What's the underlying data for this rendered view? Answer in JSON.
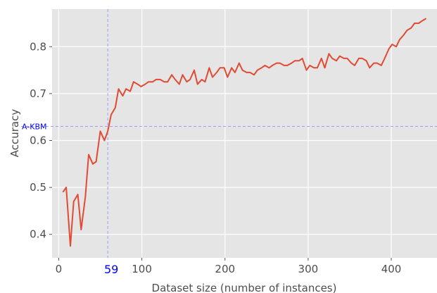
{
  "chart_data": {
    "type": "line",
    "xlabel": "Dataset size (number of instances)",
    "ylabel": "Accuracy",
    "xlim": [
      -8,
      455
    ],
    "ylim": [
      0.35,
      0.88
    ],
    "xticks": [
      0,
      100,
      200,
      300,
      400
    ],
    "yticks": [
      0.4,
      0.5,
      0.6,
      0.7,
      0.8
    ],
    "grid": true,
    "colors": {
      "background": "#e5e5e5",
      "line": "#e24a33",
      "reference": "#0000ff",
      "text": "#4d4d4d"
    },
    "reference_lines": {
      "vertical": {
        "x": 59,
        "label": "59"
      },
      "horizontal": {
        "y": 0.63,
        "label": "A-KBM"
      }
    },
    "series": [
      {
        "x": [
          5,
          9,
          14,
          18,
          23,
          27,
          32,
          36,
          41,
          45,
          50,
          55,
          59,
          63,
          68,
          72,
          77,
          81,
          86,
          90,
          95,
          99,
          104,
          108,
          113,
          117,
          122,
          127,
          131,
          136,
          140,
          145,
          149,
          154,
          158,
          163,
          167,
          172,
          176,
          181,
          185,
          190,
          194,
          199,
          203,
          208,
          212,
          217,
          221,
          226,
          230,
          235,
          239,
          244,
          248,
          253,
          257,
          262,
          266,
          271,
          275,
          280,
          284,
          289,
          293,
          298,
          302,
          307,
          311,
          316,
          320,
          325,
          329,
          334,
          338,
          343,
          347,
          352,
          356,
          361,
          365,
          370,
          374,
          379,
          383,
          388,
          392,
          397,
          401,
          406,
          410,
          415,
          419,
          424,
          428,
          433,
          437,
          442
        ],
        "y": [
          0.49,
          0.5,
          0.375,
          0.47,
          0.485,
          0.41,
          0.48,
          0.57,
          0.55,
          0.555,
          0.62,
          0.6,
          0.62,
          0.655,
          0.67,
          0.71,
          0.695,
          0.71,
          0.705,
          0.725,
          0.72,
          0.715,
          0.72,
          0.725,
          0.725,
          0.73,
          0.73,
          0.725,
          0.725,
          0.74,
          0.73,
          0.72,
          0.74,
          0.725,
          0.73,
          0.75,
          0.72,
          0.73,
          0.725,
          0.755,
          0.735,
          0.745,
          0.755,
          0.755,
          0.735,
          0.755,
          0.745,
          0.765,
          0.75,
          0.745,
          0.745,
          0.74,
          0.75,
          0.755,
          0.76,
          0.755,
          0.76,
          0.765,
          0.765,
          0.76,
          0.76,
          0.765,
          0.77,
          0.77,
          0.775,
          0.75,
          0.76,
          0.755,
          0.755,
          0.775,
          0.755,
          0.785,
          0.775,
          0.77,
          0.78,
          0.775,
          0.775,
          0.765,
          0.76,
          0.775,
          0.775,
          0.77,
          0.755,
          0.765,
          0.765,
          0.76,
          0.775,
          0.795,
          0.805,
          0.8,
          0.815,
          0.825,
          0.835,
          0.84,
          0.85,
          0.85,
          0.855,
          0.86
        ]
      }
    ]
  }
}
